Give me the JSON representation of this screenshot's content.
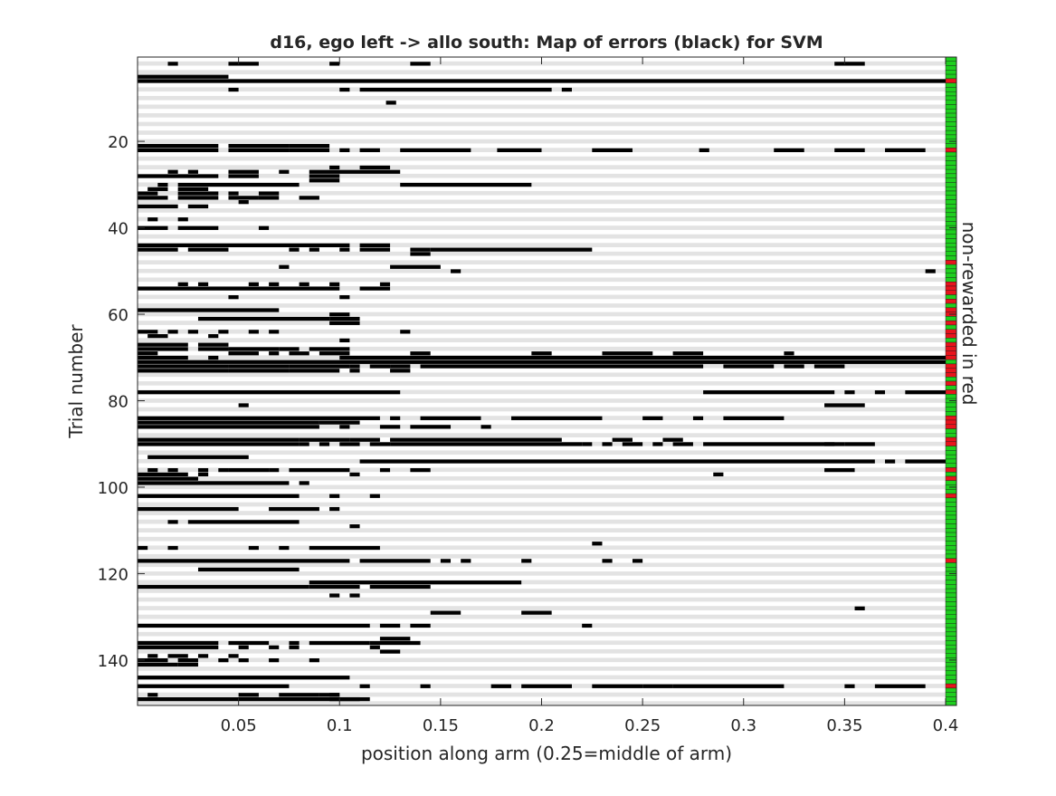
{
  "chart_data": {
    "type": "heatmap",
    "title": "d16, ego left -> allo south: Map of errors (black) for SVM",
    "xlabel": "position along arm (0.25=middle of arm)",
    "ylabel": "Trial number",
    "side_label": "non-rewarded in red",
    "xlim": [
      0.0,
      0.4
    ],
    "ylim": [
      1,
      151
    ],
    "y_reversed": true,
    "n_trials": 150,
    "xticks": [
      "0.05",
      "0.1",
      "0.15",
      "0.2",
      "0.25",
      "0.3",
      "0.35",
      "0.4"
    ],
    "xtick_values": [
      0.05,
      0.1,
      0.15,
      0.2,
      0.25,
      0.3,
      0.35,
      0.4
    ],
    "yticks": [
      "20",
      "40",
      "60",
      "80",
      "100",
      "120",
      "140"
    ],
    "ytick_values": [
      20,
      40,
      60,
      80,
      100,
      120,
      140
    ],
    "colors": {
      "error": "#000000",
      "even_row": "#e3e3e3",
      "odd_row": "#ffffff",
      "rewarded": "#1ecf1e",
      "non_rewarded": "#e8141c"
    },
    "error_segments": [
      [
        2,
        0.015,
        0.02
      ],
      [
        2,
        0.045,
        0.06
      ],
      [
        2,
        0.095,
        0.1
      ],
      [
        2,
        0.135,
        0.145
      ],
      [
        2,
        0.345,
        0.36
      ],
      [
        5,
        0.0,
        0.045
      ],
      [
        6,
        0.0,
        0.4
      ],
      [
        8,
        0.045,
        0.05
      ],
      [
        8,
        0.1,
        0.105
      ],
      [
        8,
        0.11,
        0.205
      ],
      [
        8,
        0.21,
        0.215
      ],
      [
        11,
        0.123,
        0.128
      ],
      [
        21,
        0.0,
        0.04
      ],
      [
        21,
        0.045,
        0.075
      ],
      [
        21,
        0.075,
        0.095
      ],
      [
        22,
        0.0,
        0.04
      ],
      [
        22,
        0.045,
        0.075
      ],
      [
        22,
        0.075,
        0.095
      ],
      [
        22,
        0.1,
        0.105
      ],
      [
        22,
        0.11,
        0.12
      ],
      [
        22,
        0.13,
        0.165
      ],
      [
        22,
        0.178,
        0.2
      ],
      [
        22,
        0.225,
        0.245
      ],
      [
        22,
        0.278,
        0.283
      ],
      [
        22,
        0.315,
        0.33
      ],
      [
        22,
        0.345,
        0.36
      ],
      [
        22,
        0.37,
        0.39
      ],
      [
        26,
        0.095,
        0.1
      ],
      [
        26,
        0.11,
        0.125
      ],
      [
        27,
        0.015,
        0.02
      ],
      [
        27,
        0.025,
        0.03
      ],
      [
        27,
        0.045,
        0.06
      ],
      [
        27,
        0.07,
        0.075
      ],
      [
        27,
        0.085,
        0.13
      ],
      [
        28,
        0.0,
        0.04
      ],
      [
        28,
        0.045,
        0.06
      ],
      [
        28,
        0.085,
        0.1
      ],
      [
        29,
        0.085,
        0.1
      ],
      [
        30,
        0.01,
        0.015
      ],
      [
        30,
        0.02,
        0.08
      ],
      [
        30,
        0.13,
        0.195
      ],
      [
        31,
        0.005,
        0.015
      ],
      [
        31,
        0.02,
        0.035
      ],
      [
        32,
        0.0,
        0.01
      ],
      [
        32,
        0.02,
        0.04
      ],
      [
        32,
        0.045,
        0.05
      ],
      [
        32,
        0.06,
        0.07
      ],
      [
        33,
        0.0,
        0.015
      ],
      [
        33,
        0.02,
        0.04
      ],
      [
        33,
        0.045,
        0.06
      ],
      [
        33,
        0.06,
        0.07
      ],
      [
        33,
        0.08,
        0.09
      ],
      [
        34,
        0.05,
        0.055
      ],
      [
        35,
        0.0,
        0.02
      ],
      [
        35,
        0.025,
        0.035
      ],
      [
        38,
        0.005,
        0.01
      ],
      [
        38,
        0.02,
        0.025
      ],
      [
        40,
        0.0,
        0.015
      ],
      [
        40,
        0.02,
        0.04
      ],
      [
        40,
        0.06,
        0.065
      ],
      [
        44,
        0.0,
        0.105
      ],
      [
        44,
        0.11,
        0.125
      ],
      [
        45,
        0.0,
        0.02
      ],
      [
        45,
        0.025,
        0.045
      ],
      [
        45,
        0.075,
        0.08
      ],
      [
        45,
        0.085,
        0.09
      ],
      [
        45,
        0.1,
        0.105
      ],
      [
        45,
        0.11,
        0.125
      ],
      [
        45,
        0.135,
        0.145
      ],
      [
        45,
        0.145,
        0.225
      ],
      [
        46,
        0.135,
        0.145
      ],
      [
        49,
        0.07,
        0.075
      ],
      [
        49,
        0.125,
        0.15
      ],
      [
        50,
        0.155,
        0.16
      ],
      [
        50,
        0.39,
        0.395
      ],
      [
        53,
        0.02,
        0.025
      ],
      [
        53,
        0.03,
        0.035
      ],
      [
        53,
        0.055,
        0.06
      ],
      [
        53,
        0.065,
        0.07
      ],
      [
        53,
        0.08,
        0.085
      ],
      [
        53,
        0.095,
        0.1
      ],
      [
        53,
        0.12,
        0.125
      ],
      [
        54,
        0.0,
        0.1
      ],
      [
        54,
        0.11,
        0.125
      ],
      [
        56,
        0.045,
        0.05
      ],
      [
        56,
        0.1,
        0.105
      ],
      [
        59,
        0.0,
        0.07
      ],
      [
        60,
        0.095,
        0.105
      ],
      [
        61,
        0.03,
        0.095
      ],
      [
        61,
        0.095,
        0.11
      ],
      [
        62,
        0.095,
        0.11
      ],
      [
        64,
        0.0,
        0.01
      ],
      [
        64,
        0.015,
        0.02
      ],
      [
        64,
        0.025,
        0.03
      ],
      [
        64,
        0.04,
        0.045
      ],
      [
        64,
        0.055,
        0.06
      ],
      [
        64,
        0.065,
        0.07
      ],
      [
        64,
        0.13,
        0.135
      ],
      [
        65,
        0.005,
        0.015
      ],
      [
        65,
        0.035,
        0.04
      ],
      [
        66,
        0.1,
        0.105
      ],
      [
        67,
        0.0,
        0.025
      ],
      [
        67,
        0.03,
        0.045
      ],
      [
        68,
        0.0,
        0.025
      ],
      [
        68,
        0.03,
        0.045
      ],
      [
        68,
        0.045,
        0.07
      ],
      [
        68,
        0.07,
        0.08
      ],
      [
        68,
        0.085,
        0.105
      ],
      [
        69,
        0.0,
        0.01
      ],
      [
        69,
        0.045,
        0.06
      ],
      [
        69,
        0.065,
        0.07
      ],
      [
        69,
        0.075,
        0.085
      ],
      [
        69,
        0.09,
        0.105
      ],
      [
        69,
        0.135,
        0.145
      ],
      [
        69,
        0.195,
        0.205
      ],
      [
        69,
        0.23,
        0.255
      ],
      [
        69,
        0.265,
        0.28
      ],
      [
        69,
        0.32,
        0.325
      ],
      [
        70,
        0.0,
        0.025
      ],
      [
        70,
        0.035,
        0.04
      ],
      [
        70,
        0.1,
        0.4
      ],
      [
        71,
        0.0,
        0.4
      ],
      [
        72,
        0.0,
        0.045
      ],
      [
        72,
        0.045,
        0.075
      ],
      [
        72,
        0.075,
        0.105
      ],
      [
        72,
        0.105,
        0.11
      ],
      [
        72,
        0.115,
        0.125
      ],
      [
        72,
        0.125,
        0.135
      ],
      [
        72,
        0.14,
        0.28
      ],
      [
        72,
        0.29,
        0.315
      ],
      [
        72,
        0.32,
        0.33
      ],
      [
        72,
        0.335,
        0.35
      ],
      [
        73,
        0.0,
        0.045
      ],
      [
        73,
        0.045,
        0.075
      ],
      [
        73,
        0.075,
        0.1
      ],
      [
        73,
        0.105,
        0.11
      ],
      [
        73,
        0.125,
        0.135
      ],
      [
        78,
        0.0,
        0.13
      ],
      [
        78,
        0.28,
        0.345
      ],
      [
        78,
        0.35,
        0.355
      ],
      [
        78,
        0.365,
        0.37
      ],
      [
        78,
        0.38,
        0.4
      ],
      [
        81,
        0.05,
        0.055
      ],
      [
        81,
        0.34,
        0.36
      ],
      [
        84,
        0.0,
        0.12
      ],
      [
        84,
        0.125,
        0.13
      ],
      [
        84,
        0.14,
        0.17
      ],
      [
        84,
        0.185,
        0.23
      ],
      [
        84,
        0.25,
        0.26
      ],
      [
        84,
        0.275,
        0.28
      ],
      [
        84,
        0.29,
        0.32
      ],
      [
        85,
        0.0,
        0.09
      ],
      [
        85,
        0.09,
        0.11
      ],
      [
        86,
        0.0,
        0.09
      ],
      [
        86,
        0.1,
        0.105
      ],
      [
        86,
        0.12,
        0.13
      ],
      [
        86,
        0.135,
        0.155
      ],
      [
        86,
        0.17,
        0.175
      ],
      [
        89,
        0.0,
        0.08
      ],
      [
        89,
        0.08,
        0.105
      ],
      [
        89,
        0.105,
        0.12
      ],
      [
        89,
        0.125,
        0.21
      ],
      [
        89,
        0.235,
        0.245
      ],
      [
        89,
        0.26,
        0.27
      ],
      [
        90,
        0.0,
        0.08
      ],
      [
        90,
        0.08,
        0.085
      ],
      [
        90,
        0.09,
        0.095
      ],
      [
        90,
        0.1,
        0.11
      ],
      [
        90,
        0.115,
        0.125
      ],
      [
        90,
        0.125,
        0.22
      ],
      [
        90,
        0.22,
        0.225
      ],
      [
        90,
        0.23,
        0.235
      ],
      [
        90,
        0.24,
        0.25
      ],
      [
        90,
        0.255,
        0.26
      ],
      [
        90,
        0.265,
        0.275
      ],
      [
        90,
        0.28,
        0.35
      ],
      [
        90,
        0.34,
        0.345
      ],
      [
        90,
        0.35,
        0.365
      ],
      [
        93,
        0.005,
        0.055
      ],
      [
        94,
        0.11,
        0.365
      ],
      [
        94,
        0.37,
        0.375
      ],
      [
        94,
        0.38,
        0.4
      ],
      [
        96,
        0.005,
        0.01
      ],
      [
        96,
        0.015,
        0.02
      ],
      [
        96,
        0.03,
        0.035
      ],
      [
        96,
        0.04,
        0.045
      ],
      [
        96,
        0.045,
        0.065
      ],
      [
        96,
        0.065,
        0.07
      ],
      [
        96,
        0.075,
        0.105
      ],
      [
        96,
        0.12,
        0.125
      ],
      [
        96,
        0.135,
        0.145
      ],
      [
        96,
        0.34,
        0.355
      ],
      [
        97,
        0.0,
        0.025
      ],
      [
        97,
        0.03,
        0.035
      ],
      [
        97,
        0.105,
        0.11
      ],
      [
        97,
        0.285,
        0.29
      ],
      [
        98,
        0.0,
        0.03
      ],
      [
        99,
        0.0,
        0.075
      ],
      [
        99,
        0.08,
        0.085
      ],
      [
        102,
        0.0,
        0.08
      ],
      [
        102,
        0.095,
        0.1
      ],
      [
        102,
        0.115,
        0.12
      ],
      [
        105,
        0.0,
        0.05
      ],
      [
        105,
        0.065,
        0.09
      ],
      [
        105,
        0.095,
        0.1
      ],
      [
        108,
        0.015,
        0.02
      ],
      [
        108,
        0.025,
        0.08
      ],
      [
        109,
        0.105,
        0.11
      ],
      [
        113,
        0.225,
        0.23
      ],
      [
        114,
        0.0,
        0.005
      ],
      [
        114,
        0.015,
        0.02
      ],
      [
        114,
        0.055,
        0.06
      ],
      [
        114,
        0.07,
        0.075
      ],
      [
        114,
        0.085,
        0.12
      ],
      [
        117,
        0.0,
        0.105
      ],
      [
        117,
        0.11,
        0.145
      ],
      [
        117,
        0.15,
        0.155
      ],
      [
        117,
        0.16,
        0.165
      ],
      [
        117,
        0.19,
        0.195
      ],
      [
        117,
        0.23,
        0.235
      ],
      [
        117,
        0.245,
        0.25
      ],
      [
        119,
        0.03,
        0.08
      ],
      [
        122,
        0.085,
        0.19
      ],
      [
        123,
        0.0,
        0.085
      ],
      [
        123,
        0.085,
        0.11
      ],
      [
        123,
        0.115,
        0.145
      ],
      [
        125,
        0.095,
        0.1
      ],
      [
        125,
        0.105,
        0.11
      ],
      [
        128,
        0.355,
        0.36
      ],
      [
        129,
        0.145,
        0.16
      ],
      [
        129,
        0.19,
        0.205
      ],
      [
        132,
        0.0,
        0.115
      ],
      [
        132,
        0.12,
        0.13
      ],
      [
        132,
        0.135,
        0.145
      ],
      [
        132,
        0.22,
        0.225
      ],
      [
        135,
        0.12,
        0.135
      ],
      [
        136,
        0.0,
        0.04
      ],
      [
        136,
        0.045,
        0.065
      ],
      [
        136,
        0.075,
        0.08
      ],
      [
        136,
        0.085,
        0.115
      ],
      [
        136,
        0.115,
        0.14
      ],
      [
        137,
        0.0,
        0.04
      ],
      [
        137,
        0.05,
        0.055
      ],
      [
        137,
        0.065,
        0.07
      ],
      [
        137,
        0.075,
        0.08
      ],
      [
        137,
        0.115,
        0.12
      ],
      [
        138,
        0.12,
        0.13
      ],
      [
        139,
        0.005,
        0.01
      ],
      [
        139,
        0.015,
        0.025
      ],
      [
        139,
        0.03,
        0.035
      ],
      [
        139,
        0.045,
        0.05
      ],
      [
        140,
        0.0,
        0.015
      ],
      [
        140,
        0.02,
        0.03
      ],
      [
        140,
        0.04,
        0.045
      ],
      [
        140,
        0.05,
        0.055
      ],
      [
        140,
        0.065,
        0.07
      ],
      [
        140,
        0.085,
        0.09
      ],
      [
        141,
        0.0,
        0.02
      ],
      [
        141,
        0.02,
        0.03
      ],
      [
        144,
        0.0,
        0.105
      ],
      [
        146,
        0.0,
        0.075
      ],
      [
        146,
        0.11,
        0.115
      ],
      [
        146,
        0.14,
        0.145
      ],
      [
        146,
        0.175,
        0.185
      ],
      [
        146,
        0.19,
        0.2
      ],
      [
        146,
        0.2,
        0.215
      ],
      [
        146,
        0.225,
        0.25
      ],
      [
        146,
        0.25,
        0.265
      ],
      [
        146,
        0.265,
        0.32
      ],
      [
        146,
        0.35,
        0.355
      ],
      [
        146,
        0.365,
        0.39
      ],
      [
        148,
        0.005,
        0.01
      ],
      [
        148,
        0.05,
        0.06
      ],
      [
        148,
        0.07,
        0.09
      ],
      [
        148,
        0.09,
        0.1
      ],
      [
        148,
        0.095,
        0.1
      ],
      [
        149,
        0.0,
        0.115
      ],
      [
        149,
        0.095,
        0.11
      ]
    ],
    "non_rewarded_trials": [
      6,
      22,
      48,
      53,
      54,
      55,
      57,
      59,
      60,
      62,
      64,
      65,
      67,
      68,
      69,
      70,
      72,
      73,
      74,
      76,
      78,
      84,
      85,
      86,
      89,
      90,
      96,
      98,
      102,
      117,
      146
    ]
  }
}
